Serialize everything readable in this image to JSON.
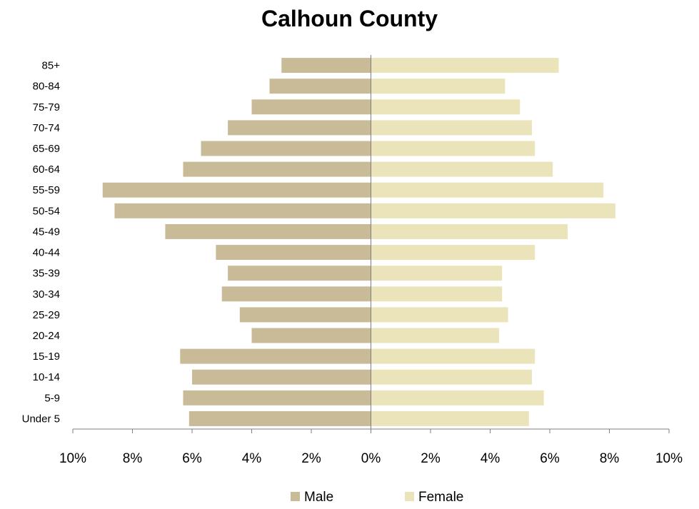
{
  "chart_data": {
    "type": "bar",
    "orientation": "horizontal-population-pyramid",
    "title": "Calhoun County",
    "categories": [
      "Under 5",
      "5-9",
      "10-14",
      "15-19",
      "20-24",
      "25-29",
      "30-34",
      "35-39",
      "40-44",
      "45-49",
      "50-54",
      "55-59",
      "60-64",
      "65-69",
      "70-74",
      "75-79",
      "80-84",
      "85+"
    ],
    "series": [
      {
        "name": "Male",
        "color": "#c9bb98",
        "side": "left",
        "values": [
          6.1,
          6.3,
          6.0,
          6.4,
          4.0,
          4.4,
          5.0,
          4.8,
          5.2,
          6.9,
          8.6,
          9.0,
          6.3,
          5.7,
          4.8,
          4.0,
          3.4,
          3.0
        ]
      },
      {
        "name": "Female",
        "color": "#ebe3b9",
        "side": "right",
        "values": [
          5.3,
          5.8,
          5.4,
          5.5,
          4.3,
          4.6,
          4.4,
          4.4,
          5.5,
          6.6,
          8.2,
          7.8,
          6.1,
          5.5,
          5.4,
          5.0,
          4.5,
          6.3
        ]
      }
    ],
    "xlim": [
      -10,
      10
    ],
    "x_ticks": [
      -10,
      -8,
      -6,
      -4,
      -2,
      0,
      2,
      4,
      6,
      8,
      10
    ],
    "x_tick_labels": [
      "10%",
      "8%",
      "6%",
      "4%",
      "2%",
      "0%",
      "2%",
      "4%",
      "6%",
      "8%",
      "10%"
    ],
    "grid": false,
    "legend_position": "bottom"
  }
}
